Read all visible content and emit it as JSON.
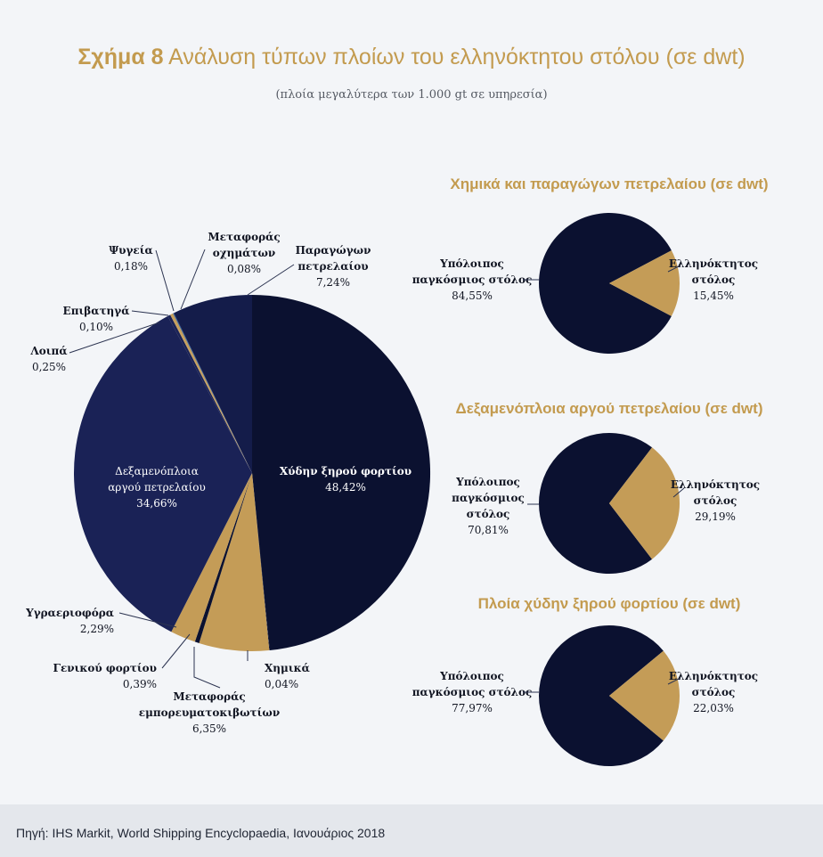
{
  "title_prefix": "Σχήμα 8",
  "title_text": "Ανάλυση τύπων πλοίων του ελληνόκτητου στόλου (σε dwt)",
  "subtitle": "(πλοία μεγαλύτερα των 1.000 gt σε υπηρεσία)",
  "source": "Πηγή: IHS Markit, World Shipping Encyclopaedia, Ιανουάριος 2018",
  "colors": {
    "navy_dark": "#0b1130",
    "navy_mid": "#1a2256",
    "navy_medium": "#141c4a",
    "gold": "#c49c57",
    "blue": "#2d5fa0",
    "background": "#f3f5f8"
  },
  "chart_data": [
    {
      "type": "pie",
      "title": "",
      "slices": [
        {
          "label": "Χύδην ξηρού φορτίου",
          "value": 48.42,
          "display": "48,42%",
          "color": "#0b1130"
        },
        {
          "label": "Χημικά",
          "value": 0.04,
          "display": "0,04%",
          "color": "#0b1130"
        },
        {
          "label": "Μεταφοράς εμπορευματοκιβωτίων",
          "value": 6.35,
          "display": "6,35%",
          "color": "#c49c57"
        },
        {
          "label": "Γενικού φορτίου",
          "value": 0.39,
          "display": "0,39%",
          "color": "#0b1130"
        },
        {
          "label": "Υγραεριοφόρα",
          "value": 2.29,
          "display": "2,29%",
          "color": "#c49c57"
        },
        {
          "label": "Δεξαμενόπλοια αργού πετρελαίου",
          "value": 34.66,
          "display": "34,66%",
          "color": "#1a2256"
        },
        {
          "label": "Λοιπά",
          "value": 0.25,
          "display": "0,25%",
          "color": "#1a2256"
        },
        {
          "label": "Επιβατηγά",
          "value": 0.1,
          "display": "0,10%",
          "color": "#c49c57"
        },
        {
          "label": "Ψυγεία",
          "value": 0.18,
          "display": "0,18%",
          "color": "#c49c57"
        },
        {
          "label": "Μεταφοράς οχημάτων",
          "value": 0.08,
          "display": "0,08%",
          "color": "#2d5fa0"
        },
        {
          "label": "Παραγώγων πετρελαίου",
          "value": 7.24,
          "display": "7,24%",
          "color": "#141c4a"
        }
      ]
    },
    {
      "type": "pie",
      "title": "Χημικά και παραγώγων πετρελαίου (σε dwt)",
      "slices": [
        {
          "label": "Υπόλοιπος παγκόσμιος στόλος",
          "value": 84.55,
          "display": "84,55%",
          "color": "#0b1130"
        },
        {
          "label": "Ελληνόκτητος στόλος",
          "value": 15.45,
          "display": "15,45%",
          "color": "#c49c57"
        }
      ]
    },
    {
      "type": "pie",
      "title": "Δεξαμενόπλοια αργού πετρελαίου (σε dwt)",
      "slices": [
        {
          "label": "Υπόλοιπος παγκόσμιος στόλος",
          "value": 70.81,
          "display": "70,81%",
          "color": "#0b1130"
        },
        {
          "label": "Ελληνόκτητος στόλος",
          "value": 29.19,
          "display": "29,19%",
          "color": "#c49c57"
        }
      ]
    },
    {
      "type": "pie",
      "title": "Πλοία χύδην ξηρού φορτίου (σε dwt)",
      "slices": [
        {
          "label": "Υπόλοιπος παγκόσμιος στόλος",
          "value": 77.97,
          "display": "77,97%",
          "color": "#0b1130"
        },
        {
          "label": "Ελληνόκτητος στόλος",
          "value": 22.03,
          "display": "22,03%",
          "color": "#c49c57"
        }
      ]
    }
  ]
}
